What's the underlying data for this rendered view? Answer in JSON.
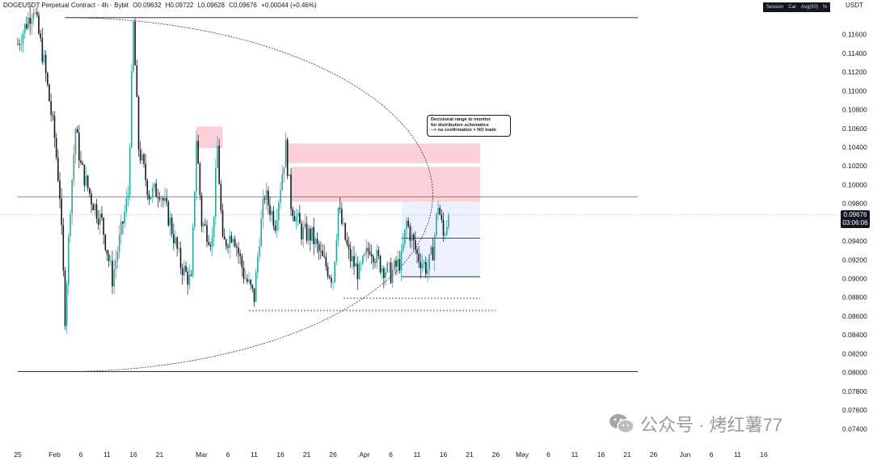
{
  "header": {
    "symbol": "DOGEUSDT Perpetual Contract · 4h · Bybit",
    "open": "O0.09632",
    "high": "H0.09722",
    "low": "L0.09628",
    "close": "C0.09676",
    "change": "+0.00044 (+0.46%)"
  },
  "toolbar": {
    "session": "Session",
    "car": "Car",
    "avg": "Avg(50)",
    "percent": "%"
  },
  "price_axis": {
    "unit": "USDT",
    "last_price": "0.09676",
    "countdown": "03:06:06"
  },
  "annotation": {
    "lines": [
      "Decisional range to monitor",
      "for distribution schematics",
      "--> no confirmation = NO trade"
    ]
  },
  "watermark": "公众号 · 烤红薯77",
  "colors": {
    "up": "#26a69a",
    "down": "#131722",
    "supply_zone": "#f7a1b1",
    "range_box": "#dce6fb",
    "level_line": "#5b5f9a"
  },
  "chart_data": {
    "type": "candlestick",
    "title": "DOGEUSDT Perpetual Contract · 4h · Bybit",
    "x_tick_labels": [
      "25",
      "Feb",
      "6",
      "11",
      "16",
      "21",
      "Mar",
      "6",
      "11",
      "16",
      "21",
      "26",
      "Apr",
      "6",
      "11",
      "16",
      "21",
      "26",
      "May",
      "6",
      "11",
      "16",
      "21",
      "26",
      "Jun",
      "6",
      "11",
      "16"
    ],
    "y_tick_labels": [
      "0.07400",
      "0.07600",
      "0.07800",
      "0.08000",
      "0.08200",
      "0.08400",
      "0.08600",
      "0.08800",
      "0.09000",
      "0.09200",
      "0.09400",
      "0.09600",
      "0.09800",
      "0.10000",
      "0.10200",
      "0.10400",
      "0.10600",
      "0.10800",
      "0.11000",
      "0.11200",
      "0.11400",
      "0.11600"
    ],
    "ylim": [
      0.0723,
      0.1183
    ],
    "xlim_days": [
      0,
      142
    ],
    "axis_start": "2025-01-25",
    "close_path": [
      [
        "2025-01-25",
        0.115
      ],
      [
        "2025-01-28",
        0.119
      ],
      [
        "2025-01-30",
        0.113
      ],
      [
        "2025-02-01",
        0.105
      ],
      [
        "2025-02-02",
        0.099
      ],
      [
        "2025-02-03",
        0.086
      ],
      [
        "2025-02-04",
        0.098
      ],
      [
        "2025-02-05",
        0.106
      ],
      [
        "2025-02-06",
        0.102
      ],
      [
        "2025-02-08",
        0.0985
      ],
      [
        "2025-02-10",
        0.096
      ],
      [
        "2025-02-12",
        0.09
      ],
      [
        "2025-02-14",
        0.096
      ],
      [
        "2025-02-15",
        0.099
      ],
      [
        "2025-02-16",
        0.117
      ],
      [
        "2025-02-17",
        0.104
      ],
      [
        "2025-02-19",
        0.099
      ],
      [
        "2025-02-21",
        0.0995
      ],
      [
        "2025-02-23",
        0.096
      ],
      [
        "2025-02-25",
        0.0915
      ],
      [
        "2025-02-27",
        0.0895
      ],
      [
        "2025-02-28",
        0.105
      ],
      [
        "2025-03-01",
        0.096
      ],
      [
        "2025-03-03",
        0.094
      ],
      [
        "2025-03-04",
        0.104
      ],
      [
        "2025-03-05",
        0.0935
      ],
      [
        "2025-03-07",
        0.095
      ],
      [
        "2025-03-09",
        0.0905
      ],
      [
        "2025-03-11",
        0.088
      ],
      [
        "2025-03-12",
        0.0945
      ],
      [
        "2025-03-13",
        0.099
      ],
      [
        "2025-03-15",
        0.096
      ],
      [
        "2025-03-17",
        0.104
      ],
      [
        "2025-03-18",
        0.098
      ],
      [
        "2025-03-20",
        0.095
      ],
      [
        "2025-03-22",
        0.0945
      ],
      [
        "2025-03-24",
        0.092
      ],
      [
        "2025-03-26",
        0.09
      ],
      [
        "2025-03-27",
        0.0975
      ],
      [
        "2025-03-29",
        0.0925
      ],
      [
        "2025-03-31",
        0.0905
      ],
      [
        "2025-04-02",
        0.0935
      ],
      [
        "2025-04-04",
        0.0915
      ],
      [
        "2025-04-06",
        0.0905
      ],
      [
        "2025-04-08",
        0.092
      ],
      [
        "2025-04-09",
        0.096
      ],
      [
        "2025-04-11",
        0.0925
      ],
      [
        "2025-04-13",
        0.091
      ],
      [
        "2025-04-14",
        0.093
      ],
      [
        "2025-04-15",
        0.098
      ],
      [
        "2025-04-16",
        0.0945
      ],
      [
        "2025-04-17",
        0.0968
      ]
    ],
    "horizontal_levels": [
      {
        "from": "2025-02-03",
        "to": "2025-05-23",
        "price": 0.1178
      },
      {
        "from": "2025-01-25",
        "to": "2025-05-23",
        "price": 0.0987
      },
      {
        "from": "2025-01-25",
        "to": "2025-05-23",
        "price": 0.0801
      },
      {
        "from": "2025-04-08",
        "to": "2025-04-23",
        "price": 0.0943
      },
      {
        "from": "2025-04-08",
        "to": "2025-04-23",
        "price": 0.0902
      },
      {
        "from": "2025-03-28",
        "to": "2025-04-23",
        "price": 0.0879
      },
      {
        "from": "2025-03-10",
        "to": "2025-04-26",
        "price": 0.0866
      }
    ],
    "zones": [
      {
        "type": "supply",
        "from": "2025-02-28",
        "to": "2025-03-05",
        "top": 0.1062,
        "bottom": 0.1039
      },
      {
        "type": "supply",
        "from": "2025-03-17",
        "to": "2025-04-23",
        "top": 0.1044,
        "bottom": 0.1023
      },
      {
        "type": "supply",
        "from": "2025-03-18",
        "to": "2025-04-23",
        "top": 0.1019,
        "bottom": 0.0982
      },
      {
        "type": "range",
        "from": "2025-04-08",
        "to": "2025-04-23",
        "top": 0.0982,
        "bottom": 0.0902
      }
    ],
    "arc": {
      "start": "2025-02-03",
      "apex_x": "2025-04-14",
      "top": 0.1178,
      "bottom": 0.0801
    }
  }
}
